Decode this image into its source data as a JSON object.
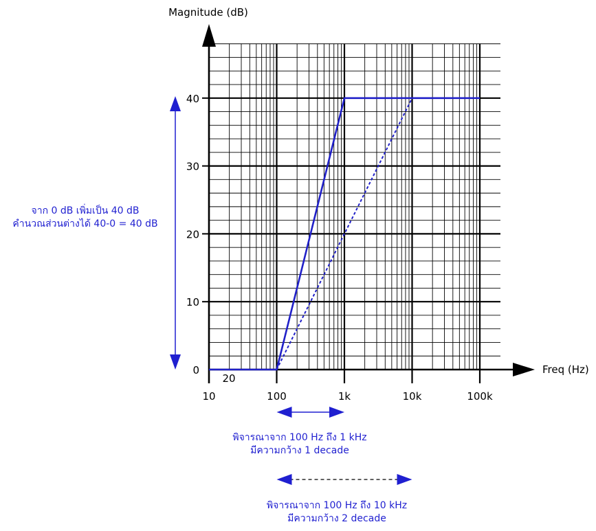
{
  "chart_data": {
    "type": "line",
    "title": "",
    "xlabel": "Freq (Hz)",
    "ylabel": "Magnitude (dB)",
    "xscale": "log",
    "xlim": [
      10,
      100000
    ],
    "ylim": [
      0,
      40
    ],
    "grid": true,
    "x_tick_labels": [
      "10",
      "100",
      "1k",
      "10k",
      "100k"
    ],
    "x_tick_values": [
      10,
      100,
      1000,
      10000,
      100000
    ],
    "y_tick_labels": [
      "0",
      "10",
      "20",
      "30",
      "40"
    ],
    "y_tick_values": [
      0,
      10,
      20,
      30,
      40
    ],
    "extra_label": "20",
    "series": [
      {
        "style": "solid",
        "color": "#2020c8",
        "points": [
          [
            10,
            0
          ],
          [
            100,
            0
          ],
          [
            1000,
            40
          ],
          [
            100000,
            40
          ]
        ]
      },
      {
        "style": "dashed",
        "color": "#2020c8",
        "points": [
          [
            100,
            0
          ],
          [
            10000,
            40
          ]
        ]
      }
    ]
  },
  "annotations": {
    "vertical_line1": "จาก 0 dB เพิ่มเป็น 40 dB",
    "vertical_line2": "คำนวณส่วนต่างได้ 40-0 = 40 dB",
    "decade1_line1": "พิจารณาจาก 100 Hz ถึง 1 kHz",
    "decade1_line2": "มีความกว้าง 1 decade",
    "decade2_line1": "พิจารณาจาก 100 Hz ถึง 10 kHz",
    "decade2_line2": "มีความกว้าง 2 decade",
    "accent_color": "#1f1fd0"
  }
}
